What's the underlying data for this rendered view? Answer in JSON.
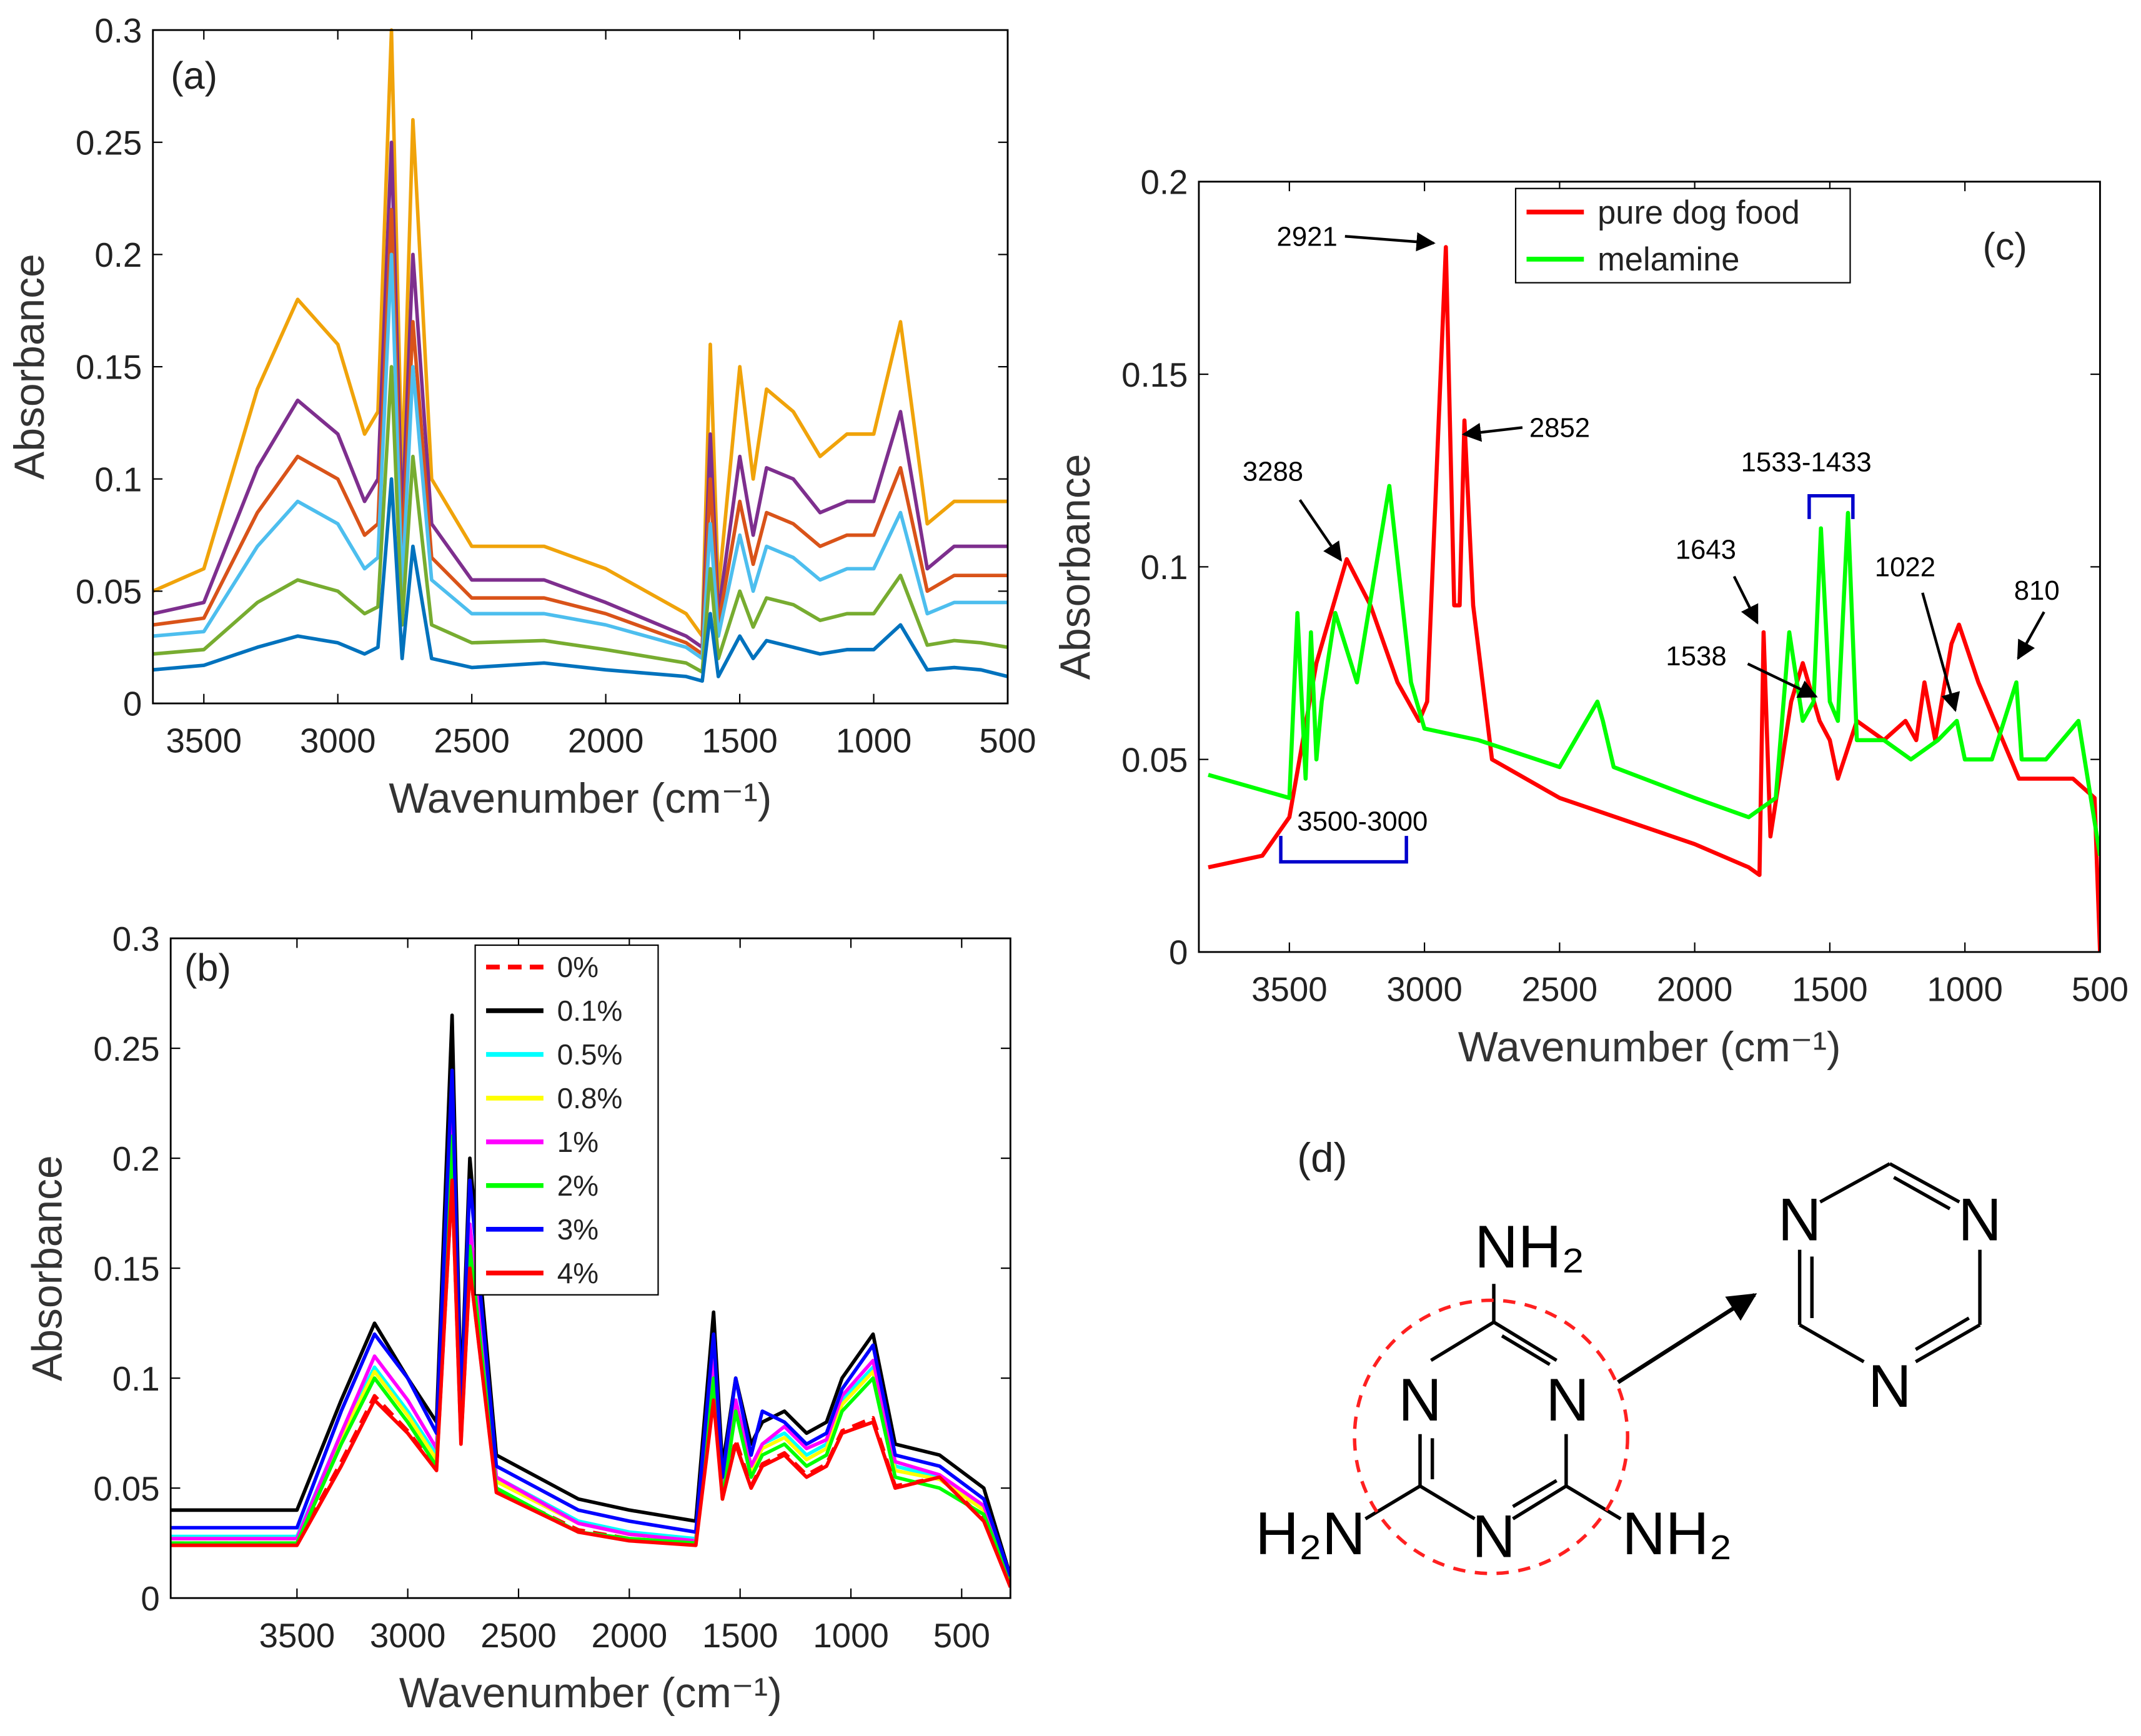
{
  "chart_data": [
    {
      "type": "line",
      "panel_label": "(a)",
      "xlabel": "Wavenumber (cm⁻¹)",
      "ylabel": "Absorbance",
      "xlim": [
        3690,
        500
      ],
      "xticks": [
        3500,
        3000,
        2500,
        2000,
        1500,
        1000,
        500
      ],
      "ylim": [
        0,
        0.3
      ],
      "yticks": [
        0,
        0.05,
        0.1,
        0.15,
        0.2,
        0.25,
        0.3
      ],
      "grid": false,
      "x": [
        3690,
        3500,
        3300,
        3150,
        3000,
        2900,
        2850,
        2800,
        2760,
        2720,
        2650,
        2500,
        2230,
        2000,
        1700,
        1640,
        1610,
        1580,
        1500,
        1450,
        1400,
        1300,
        1200,
        1100,
        1000,
        900,
        800,
        700,
        600,
        500
      ],
      "series": [
        {
          "color": "#f0a30a",
          "values": [
            0.05,
            0.06,
            0.14,
            0.18,
            0.16,
            0.12,
            0.13,
            0.3,
            0.1,
            0.26,
            0.1,
            0.07,
            0.07,
            0.06,
            0.04,
            0.03,
            0.16,
            0.05,
            0.15,
            0.1,
            0.14,
            0.13,
            0.11,
            0.12,
            0.12,
            0.17,
            0.08,
            0.09,
            0.09,
            0.09
          ]
        },
        {
          "color": "#7e2f8e",
          "values": [
            0.04,
            0.045,
            0.105,
            0.135,
            0.12,
            0.09,
            0.1,
            0.25,
            0.08,
            0.2,
            0.08,
            0.055,
            0.055,
            0.045,
            0.03,
            0.025,
            0.12,
            0.04,
            0.11,
            0.075,
            0.105,
            0.1,
            0.085,
            0.09,
            0.09,
            0.13,
            0.06,
            0.07,
            0.07,
            0.07
          ]
        },
        {
          "color": "#d95319",
          "values": [
            0.035,
            0.038,
            0.085,
            0.11,
            0.1,
            0.075,
            0.08,
            0.22,
            0.065,
            0.17,
            0.065,
            0.047,
            0.047,
            0.04,
            0.027,
            0.022,
            0.1,
            0.035,
            0.09,
            0.062,
            0.085,
            0.08,
            0.07,
            0.075,
            0.075,
            0.105,
            0.05,
            0.057,
            0.057,
            0.057
          ]
        },
        {
          "color": "#4dbeee",
          "values": [
            0.03,
            0.032,
            0.07,
            0.09,
            0.08,
            0.06,
            0.065,
            0.2,
            0.05,
            0.15,
            0.055,
            0.04,
            0.04,
            0.035,
            0.025,
            0.02,
            0.08,
            0.03,
            0.075,
            0.05,
            0.07,
            0.065,
            0.055,
            0.06,
            0.06,
            0.085,
            0.04,
            0.045,
            0.045,
            0.045
          ]
        },
        {
          "color": "#77ac30",
          "values": [
            0.022,
            0.024,
            0.045,
            0.055,
            0.05,
            0.04,
            0.043,
            0.15,
            0.035,
            0.11,
            0.035,
            0.027,
            0.028,
            0.024,
            0.018,
            0.014,
            0.06,
            0.02,
            0.05,
            0.034,
            0.047,
            0.044,
            0.037,
            0.04,
            0.04,
            0.057,
            0.026,
            0.028,
            0.027,
            0.025
          ]
        },
        {
          "color": "#0072bd",
          "values": [
            0.015,
            0.017,
            0.025,
            0.03,
            0.027,
            0.022,
            0.025,
            0.1,
            0.02,
            0.07,
            0.02,
            0.016,
            0.018,
            0.015,
            0.012,
            0.01,
            0.04,
            0.012,
            0.03,
            0.02,
            0.028,
            0.025,
            0.022,
            0.024,
            0.024,
            0.035,
            0.015,
            0.016,
            0.015,
            0.012
          ]
        }
      ]
    },
    {
      "type": "line",
      "panel_label": "(b)",
      "xlabel": "Wavenumber (cm⁻¹)",
      "ylabel": "Absorbance",
      "xlim": [
        4070,
        280
      ],
      "xticks": [
        3500,
        3000,
        2500,
        2000,
        1500,
        1000,
        500
      ],
      "ylim": [
        0,
        0.3
      ],
      "yticks": [
        0,
        0.05,
        0.1,
        0.15,
        0.2,
        0.25,
        0.3
      ],
      "grid": false,
      "legend": "upper center",
      "x": [
        4070,
        3500,
        3300,
        3150,
        3000,
        2870,
        2800,
        2760,
        2720,
        2600,
        2230,
        2000,
        1700,
        1620,
        1580,
        1520,
        1450,
        1400,
        1300,
        1200,
        1110,
        1040,
        900,
        800,
        600,
        400,
        280
      ],
      "series": [
        {
          "name": "0%",
          "color": "#ff0000",
          "dashed": true,
          "values": [
            0.025,
            0.025,
            0.062,
            0.092,
            0.076,
            0.059,
            0.19,
            0.071,
            0.15,
            0.049,
            0.031,
            0.027,
            0.025,
            0.092,
            0.046,
            0.072,
            0.051,
            0.061,
            0.066,
            0.056,
            0.061,
            0.076,
            0.082,
            0.051,
            0.055,
            0.036,
            0.005
          ]
        },
        {
          "name": "0.1%",
          "color": "#000000",
          "values": [
            0.04,
            0.04,
            0.09,
            0.125,
            0.1,
            0.08,
            0.265,
            0.09,
            0.2,
            0.065,
            0.045,
            0.04,
            0.035,
            0.13,
            0.06,
            0.1,
            0.07,
            0.08,
            0.085,
            0.075,
            0.08,
            0.1,
            0.12,
            0.07,
            0.065,
            0.05,
            0.01
          ]
        },
        {
          "name": "0.5%",
          "color": "#00ffff",
          "values": [
            0.028,
            0.028,
            0.075,
            0.105,
            0.085,
            0.065,
            0.22,
            0.08,
            0.17,
            0.055,
            0.035,
            0.03,
            0.027,
            0.11,
            0.05,
            0.09,
            0.06,
            0.07,
            0.075,
            0.065,
            0.07,
            0.09,
            0.105,
            0.06,
            0.055,
            0.04,
            0.01
          ]
        },
        {
          "name": "0.8%",
          "color": "#ffff00",
          "values": [
            0.027,
            0.027,
            0.073,
            0.103,
            0.083,
            0.063,
            0.215,
            0.078,
            0.165,
            0.053,
            0.034,
            0.029,
            0.026,
            0.108,
            0.049,
            0.088,
            0.058,
            0.068,
            0.073,
            0.063,
            0.068,
            0.088,
            0.103,
            0.058,
            0.054,
            0.04,
            0.01
          ]
        },
        {
          "name": "1%",
          "color": "#ff00ff",
          "values": [
            0.027,
            0.027,
            0.075,
            0.11,
            0.09,
            0.068,
            0.22,
            0.08,
            0.17,
            0.055,
            0.034,
            0.029,
            0.026,
            0.11,
            0.05,
            0.09,
            0.06,
            0.07,
            0.078,
            0.068,
            0.072,
            0.092,
            0.108,
            0.062,
            0.056,
            0.042,
            0.01
          ]
        },
        {
          "name": "2%",
          "color": "#00ff00",
          "values": [
            0.025,
            0.025,
            0.07,
            0.1,
            0.08,
            0.06,
            0.21,
            0.075,
            0.16,
            0.05,
            0.03,
            0.027,
            0.025,
            0.1,
            0.045,
            0.085,
            0.055,
            0.065,
            0.07,
            0.06,
            0.065,
            0.085,
            0.1,
            0.055,
            0.05,
            0.038,
            0.008
          ]
        },
        {
          "name": "3%",
          "color": "#0000ff",
          "values": [
            0.032,
            0.032,
            0.085,
            0.12,
            0.1,
            0.075,
            0.24,
            0.085,
            0.19,
            0.06,
            0.04,
            0.035,
            0.03,
            0.12,
            0.055,
            0.1,
            0.065,
            0.085,
            0.08,
            0.07,
            0.075,
            0.095,
            0.115,
            0.065,
            0.06,
            0.045,
            0.01
          ]
        },
        {
          "name": "4%",
          "color": "#ff0000",
          "values": [
            0.024,
            0.024,
            0.06,
            0.09,
            0.075,
            0.058,
            0.19,
            0.07,
            0.15,
            0.048,
            0.03,
            0.026,
            0.024,
            0.09,
            0.045,
            0.07,
            0.05,
            0.06,
            0.065,
            0.055,
            0.06,
            0.075,
            0.08,
            0.05,
            0.055,
            0.035,
            0.005
          ]
        }
      ]
    },
    {
      "type": "line",
      "panel_label": "(c)",
      "xlabel": "Wavenumber (cm⁻¹)",
      "ylabel": "Absorbance",
      "xlim": [
        3835,
        500
      ],
      "xticks": [
        3500,
        3000,
        2500,
        2000,
        1500,
        1000,
        500
      ],
      "ylim": [
        0,
        0.2
      ],
      "yticks": [
        0,
        0.05,
        0.1,
        0.15,
        0.2
      ],
      "grid": false,
      "legend": "upper center",
      "series": [
        {
          "name": "pure dog food",
          "color": "#ff0000",
          "x": [
            3800,
            3600,
            3500,
            3400,
            3288,
            3200,
            3100,
            3020,
            2990,
            2921,
            2890,
            2870,
            2852,
            2820,
            2750,
            2500,
            2000,
            1800,
            1760,
            1745,
            1720,
            1643,
            1600,
            1538,
            1500,
            1470,
            1400,
            1300,
            1220,
            1180,
            1150,
            1110,
            1050,
            1022,
            950,
            800,
            600,
            520,
            500
          ],
          "values": [
            0.022,
            0.025,
            0.035,
            0.075,
            0.102,
            0.09,
            0.07,
            0.06,
            0.065,
            0.183,
            0.09,
            0.09,
            0.138,
            0.09,
            0.05,
            0.04,
            0.028,
            0.022,
            0.02,
            0.083,
            0.03,
            0.065,
            0.075,
            0.06,
            0.055,
            0.045,
            0.06,
            0.055,
            0.06,
            0.055,
            0.07,
            0.055,
            0.08,
            0.085,
            0.07,
            0.045,
            0.045,
            0.04,
            0
          ]
        },
        {
          "name": "melamine",
          "color": "#00ff00",
          "x": [
            3800,
            3500,
            3470,
            3440,
            3420,
            3400,
            3380,
            3330,
            3250,
            3130,
            3050,
            3000,
            2800,
            2500,
            2360,
            2340,
            2300,
            2000,
            1800,
            1700,
            1650,
            1600,
            1560,
            1533,
            1500,
            1470,
            1433,
            1400,
            1300,
            1200,
            1100,
            1030,
            1000,
            900,
            810,
            790,
            700,
            580,
            500
          ],
          "values": [
            0.046,
            0.04,
            0.088,
            0.045,
            0.083,
            0.05,
            0.065,
            0.088,
            0.07,
            0.121,
            0.07,
            0.058,
            0.055,
            0.048,
            0.065,
            0.06,
            0.048,
            0.04,
            0.035,
            0.04,
            0.083,
            0.06,
            0.065,
            0.11,
            0.065,
            0.06,
            0.114,
            0.055,
            0.055,
            0.05,
            0.055,
            0.06,
            0.05,
            0.05,
            0.07,
            0.05,
            0.05,
            0.06,
            0.025
          ]
        }
      ],
      "annotations": [
        "2921",
        "2852",
        "3288",
        "1643",
        "1538",
        "1022",
        "810",
        "3500-3000",
        "1533-1433"
      ]
    }
  ],
  "structure": {
    "label": "(d)",
    "melamine_atoms": [
      "NH₂",
      "N",
      "N",
      "N",
      "H₂N",
      "NH₂"
    ],
    "triazine_atoms": [
      "N",
      "N",
      "N"
    ]
  }
}
